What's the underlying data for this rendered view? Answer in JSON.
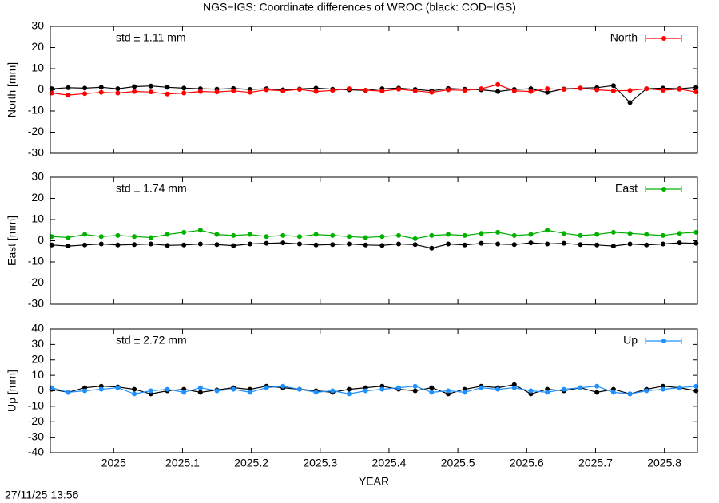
{
  "title": "NGS−IGS: Coordinate differences of WROC (black: COD−IGS)",
  "timestamp": "27/11/25 13:56",
  "chart_data": [
    {
      "type": "line",
      "ylabel": "North [mm]",
      "annotation": "std ± 1.11 mm",
      "legend": "upper right",
      "xlim": [
        2024.908,
        2025.848
      ],
      "ylim": [
        -30,
        30
      ],
      "yticks": [
        -30,
        -20,
        -10,
        0,
        10,
        20,
        30
      ],
      "x": [
        2024.91,
        2024.934,
        2024.958,
        2024.982,
        2025.006,
        2025.03,
        2025.054,
        2025.078,
        2025.102,
        2025.126,
        2025.15,
        2025.174,
        2025.198,
        2025.222,
        2025.246,
        2025.27,
        2025.294,
        2025.318,
        2025.342,
        2025.366,
        2025.39,
        2025.414,
        2025.438,
        2025.462,
        2025.486,
        2025.51,
        2025.534,
        2025.558,
        2025.582,
        2025.606,
        2025.63,
        2025.654,
        2025.678,
        2025.702,
        2025.726,
        2025.75,
        2025.774,
        2025.798,
        2025.822,
        2025.846
      ],
      "series": [
        {
          "color": "#000000",
          "values": [
            0.5,
            1,
            0.8,
            1.2,
            0.5,
            1.5,
            1.8,
            1.2,
            0.8,
            0.5,
            0.3,
            0.6,
            0.2,
            0.5,
            0,
            0.4,
            0.8,
            0.3,
            0,
            -0.3,
            0.5,
            0.8,
            0.2,
            -0.5,
            0.6,
            0.3,
            0,
            -0.8,
            0.2,
            0.5,
            -1.2,
            0.4,
            0.8,
            1,
            2,
            -6,
            0.5,
            0.8,
            0.5,
            1.2
          ]
        },
        {
          "name": "North",
          "color": "#ff0000",
          "values": [
            -1.5,
            -2.5,
            -1.8,
            -1.2,
            -1.5,
            -0.8,
            -1,
            -2,
            -1.5,
            -0.8,
            -1,
            -0.5,
            -1.2,
            0,
            -0.5,
            0.2,
            -0.8,
            -0.3,
            0.5,
            -0.2,
            -0.6,
            0.3,
            -0.5,
            -1.2,
            0,
            -0.3,
            0.5,
            2.5,
            -0.5,
            -0.8,
            0.5,
            0.2,
            0.8,
            0,
            -0.5,
            -0.3,
            0.5,
            -0.2,
            0.3,
            -1
          ]
        }
      ]
    },
    {
      "type": "line",
      "ylabel": "East [mm]",
      "annotation": "std ± 1.74 mm",
      "legend": "upper right",
      "xlim": [
        2024.908,
        2025.848
      ],
      "ylim": [
        -30,
        30
      ],
      "yticks": [
        -30,
        -20,
        -10,
        0,
        10,
        20,
        30
      ],
      "x": [
        2024.91,
        2024.934,
        2024.958,
        2024.982,
        2025.006,
        2025.03,
        2025.054,
        2025.078,
        2025.102,
        2025.126,
        2025.15,
        2025.174,
        2025.198,
        2025.222,
        2025.246,
        2025.27,
        2025.294,
        2025.318,
        2025.342,
        2025.366,
        2025.39,
        2025.414,
        2025.438,
        2025.462,
        2025.486,
        2025.51,
        2025.534,
        2025.558,
        2025.582,
        2025.606,
        2025.63,
        2025.654,
        2025.678,
        2025.702,
        2025.726,
        2025.75,
        2025.774,
        2025.798,
        2025.822,
        2025.846
      ],
      "series": [
        {
          "color": "#000000",
          "values": [
            -2,
            -2.5,
            -2,
            -1.5,
            -2,
            -1.8,
            -1.5,
            -2.2,
            -2,
            -1.5,
            -1.8,
            -2.3,
            -1.5,
            -1.2,
            -1,
            -1.5,
            -2,
            -1.8,
            -1.5,
            -2,
            -2.2,
            -1.5,
            -1.8,
            -3.5,
            -1.5,
            -2,
            -1.2,
            -1.5,
            -1.8,
            -1,
            -1.5,
            -1.2,
            -1.8,
            -2,
            -2.5,
            -1.5,
            -2,
            -1.5,
            -1,
            -1.2
          ]
        },
        {
          "name": "East",
          "color": "#00b000",
          "values": [
            2,
            1.5,
            3,
            2,
            2.5,
            2,
            1.5,
            3,
            4,
            5,
            3,
            2.5,
            3,
            2,
            2.5,
            2,
            3,
            2.5,
            2,
            1.5,
            2,
            2.5,
            1,
            2.5,
            3,
            2.5,
            3.5,
            4,
            2.5,
            3,
            5,
            3.5,
            2.5,
            3,
            4,
            3.5,
            3,
            2.5,
            3.5,
            4
          ]
        }
      ]
    },
    {
      "type": "line",
      "ylabel": "Up [mm]",
      "annotation": "std ± 2.72 mm",
      "legend": "upper right",
      "xlabel": "YEAR",
      "xlim": [
        2024.908,
        2025.848
      ],
      "xticks": [
        2025,
        2025.1,
        2025.2,
        2025.3,
        2025.4,
        2025.5,
        2025.6,
        2025.7,
        2025.8
      ],
      "ylim": [
        -40,
        40
      ],
      "yticks": [
        -40,
        -30,
        -20,
        -10,
        0,
        10,
        20,
        30,
        40
      ],
      "x": [
        2024.91,
        2024.934,
        2024.958,
        2024.982,
        2025.006,
        2025.03,
        2025.054,
        2025.078,
        2025.102,
        2025.126,
        2025.15,
        2025.174,
        2025.198,
        2025.222,
        2025.246,
        2025.27,
        2025.294,
        2025.318,
        2025.342,
        2025.366,
        2025.39,
        2025.414,
        2025.438,
        2025.462,
        2025.486,
        2025.51,
        2025.534,
        2025.558,
        2025.582,
        2025.606,
        2025.63,
        2025.654,
        2025.678,
        2025.702,
        2025.726,
        2025.75,
        2025.774,
        2025.798,
        2025.822,
        2025.846
      ],
      "series": [
        {
          "color": "#000000",
          "values": [
            1,
            -1,
            2,
            3,
            2.5,
            1,
            -2,
            0,
            1,
            -1,
            0.5,
            2,
            1,
            3,
            2,
            1,
            0,
            -1,
            1,
            2,
            3,
            1,
            0,
            2,
            -2,
            1,
            3,
            2,
            4,
            -2,
            1,
            0,
            2,
            -1,
            1,
            -2,
            1,
            3,
            2,
            0
          ]
        },
        {
          "name": "Up",
          "color": "#1e90ff",
          "values": [
            2,
            -1,
            0,
            1,
            2,
            -2,
            0,
            1,
            -1,
            2,
            0,
            1,
            -1,
            2,
            3,
            1,
            -1,
            0,
            -2,
            0,
            1,
            2,
            3,
            -1,
            0,
            -1,
            2,
            1,
            2,
            0,
            -1,
            1,
            2,
            3,
            -1,
            -2,
            0,
            1,
            2,
            3
          ]
        }
      ]
    }
  ]
}
